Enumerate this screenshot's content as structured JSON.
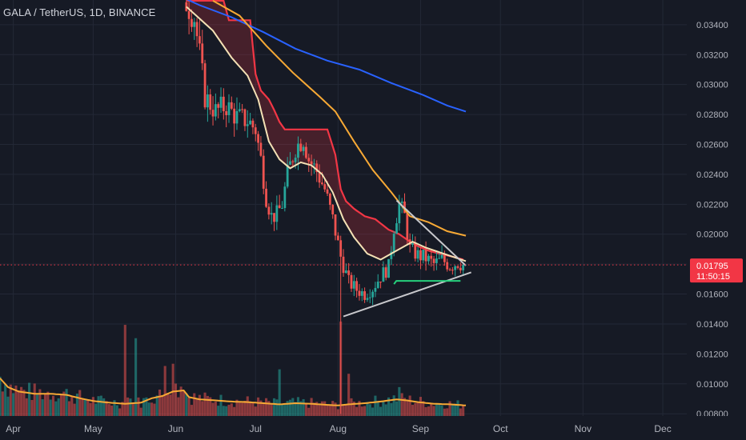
{
  "header": {
    "symbol_label": "GALA / TetherUS, 1D, BINANCE"
  },
  "price_badge": {
    "price": "0.01795",
    "countdown": "11:50:15",
    "color": "#f23645"
  },
  "colors": {
    "background": "#161a25",
    "grid": "#232836",
    "up": "#26a69a",
    "down": "#ef5350",
    "ma_fast": "#f4e1b5",
    "ma_mid": "#f7a935",
    "ma_slow": "#2962ff",
    "band": "#f23645",
    "volume_ma": "#f7a935",
    "trendline": "#c8c8cc",
    "support": "#26d07c"
  },
  "chart_data": {
    "type": "candlestick",
    "y_ticks": [
      "0.03400",
      "0.03200",
      "0.03000",
      "0.02800",
      "0.02600",
      "0.02400",
      "0.02200",
      "0.02000",
      "0.01800",
      "0.01600",
      "0.01400",
      "0.01200",
      "0.01000",
      "0.00800"
    ],
    "y_tick_values": [
      0.034,
      0.032,
      0.03,
      0.028,
      0.026,
      0.024,
      0.022,
      0.02,
      0.018,
      0.016,
      0.014,
      0.012,
      0.01,
      0.008
    ],
    "ylim": [
      0.00785,
      0.03565
    ],
    "x_range_days": [
      -5,
      253
    ],
    "months": [
      {
        "label": "Apr",
        "day": 0
      },
      {
        "label": "May",
        "day": 30
      },
      {
        "label": "Jun",
        "day": 61
      },
      {
        "label": "Jul",
        "day": 91
      },
      {
        "label": "Aug",
        "day": 122
      },
      {
        "label": "Sep",
        "day": 153
      },
      {
        "label": "Oct",
        "day": 183
      },
      {
        "label": "Nov",
        "day": 214
      },
      {
        "label": "Dec",
        "day": 244
      }
    ],
    "current_price": 0.01795,
    "candles_first_day": 65,
    "candles_last_day": 169,
    "price_path": [
      [
        65,
        0.0355
      ],
      [
        68,
        0.0345
      ],
      [
        70,
        0.032
      ],
      [
        72,
        0.0292
      ],
      [
        76,
        0.0282
      ],
      [
        80,
        0.0286
      ],
      [
        84,
        0.0278
      ],
      [
        88,
        0.0276
      ],
      [
        91,
        0.027
      ],
      [
        93,
        0.025
      ],
      [
        95,
        0.0225
      ],
      [
        97,
        0.0212
      ],
      [
        99,
        0.0213
      ],
      [
        101,
        0.022
      ],
      [
        103,
        0.024
      ],
      [
        106,
        0.0258
      ],
      [
        109,
        0.0264
      ],
      [
        111,
        0.025
      ],
      [
        114,
        0.0242
      ],
      [
        117,
        0.023
      ],
      [
        120,
        0.021
      ],
      [
        123,
        0.0185
      ],
      [
        126,
        0.0168
      ],
      [
        129,
        0.0163
      ],
      [
        132,
        0.016
      ],
      [
        135,
        0.0164
      ],
      [
        138,
        0.0172
      ],
      [
        141,
        0.0178
      ],
      [
        143,
        0.0205
      ],
      [
        145,
        0.022
      ],
      [
        147,
        0.0212
      ],
      [
        149,
        0.019
      ],
      [
        152,
        0.0186
      ],
      [
        155,
        0.0184
      ],
      [
        158,
        0.018
      ],
      [
        161,
        0.0183
      ],
      [
        164,
        0.0179
      ],
      [
        167,
        0.0181
      ],
      [
        169,
        0.01795
      ]
    ],
    "series": [
      {
        "name": "",
        "kind": "line",
        "color_key": "ma_slow",
        "points": [
          [
            59,
            0.0362
          ],
          [
            70,
            0.0353
          ],
          [
            82,
            0.0345
          ],
          [
            94,
            0.0335
          ],
          [
            106,
            0.0324
          ],
          [
            118,
            0.0316
          ],
          [
            130,
            0.031
          ],
          [
            142,
            0.0301
          ],
          [
            154,
            0.0293
          ],
          [
            163,
            0.0286
          ],
          [
            170,
            0.0282
          ]
        ]
      },
      {
        "name": "",
        "kind": "line",
        "color_key": "ma_mid",
        "points": [
          [
            75,
            0.0356
          ],
          [
            85,
            0.0346
          ],
          [
            95,
            0.0326
          ],
          [
            105,
            0.0308
          ],
          [
            115,
            0.0292
          ],
          [
            121,
            0.0282
          ],
          [
            128,
            0.0262
          ],
          [
            135,
            0.0243
          ],
          [
            142,
            0.0228
          ],
          [
            149,
            0.0212
          ],
          [
            156,
            0.0208
          ],
          [
            163,
            0.0202
          ],
          [
            170,
            0.0199
          ]
        ]
      },
      {
        "name": "",
        "kind": "line",
        "color_key": "ma_fast",
        "points": [
          [
            65,
            0.0352
          ],
          [
            75,
            0.0336
          ],
          [
            82,
            0.0318
          ],
          [
            88,
            0.0306
          ],
          [
            92,
            0.029
          ],
          [
            96,
            0.0262
          ],
          [
            100,
            0.025
          ],
          [
            104,
            0.0244
          ],
          [
            108,
            0.0248
          ],
          [
            112,
            0.0246
          ],
          [
            116,
            0.024
          ],
          [
            120,
            0.0228
          ],
          [
            124,
            0.021
          ],
          [
            128,
            0.0198
          ],
          [
            133,
            0.0187
          ],
          [
            138,
            0.0183
          ],
          [
            144,
            0.0189
          ],
          [
            150,
            0.0195
          ],
          [
            155,
            0.0191
          ],
          [
            160,
            0.0188
          ],
          [
            165,
            0.0185
          ],
          [
            170,
            0.0182
          ]
        ]
      },
      {
        "name": "",
        "kind": "band_top",
        "color_key": "band",
        "points": [
          [
            65,
            0.0356
          ],
          [
            79,
            0.0356
          ],
          [
            81,
            0.0343
          ],
          [
            89,
            0.0343
          ],
          [
            91,
            0.0307
          ],
          [
            93,
            0.0296
          ],
          [
            96,
            0.029
          ],
          [
            98,
            0.0283
          ],
          [
            100,
            0.0275
          ],
          [
            102,
            0.027
          ],
          [
            118,
            0.027
          ],
          [
            121,
            0.0253
          ],
          [
            123,
            0.023
          ],
          [
            125,
            0.0222
          ],
          [
            128,
            0.0217
          ],
          [
            132,
            0.0212
          ],
          [
            136,
            0.021
          ],
          [
            141,
            0.0203
          ],
          [
            145,
            0.02
          ],
          [
            149,
            0.0195
          ],
          [
            152,
            0.0192
          ],
          [
            156,
            0.0189
          ],
          [
            160,
            0.0187
          ],
          [
            165,
            0.0185
          ],
          [
            169,
            0.0183
          ]
        ]
      },
      {
        "name": "",
        "kind": "volume_ma",
        "color_key": "volume_ma",
        "points": [
          [
            -5,
            3400
          ],
          [
            -2,
            2600
          ],
          [
            2,
            2200
          ],
          [
            8,
            2000
          ],
          [
            14,
            2000
          ],
          [
            20,
            1900
          ],
          [
            25,
            1600
          ],
          [
            30,
            1350
          ],
          [
            36,
            1200
          ],
          [
            42,
            1100
          ],
          [
            48,
            1200
          ],
          [
            52,
            1600
          ],
          [
            56,
            1800
          ],
          [
            60,
            2200
          ],
          [
            64,
            2300
          ],
          [
            66,
            1700
          ],
          [
            70,
            1500
          ],
          [
            76,
            1400
          ],
          [
            82,
            1300
          ],
          [
            88,
            1250
          ],
          [
            94,
            1150
          ],
          [
            100,
            1050
          ],
          [
            106,
            1150
          ],
          [
            112,
            1100
          ],
          [
            118,
            1000
          ],
          [
            122,
            950
          ],
          [
            126,
            1050
          ],
          [
            132,
            1150
          ],
          [
            138,
            1300
          ],
          [
            144,
            1500
          ],
          [
            148,
            1400
          ],
          [
            152,
            1250
          ],
          [
            158,
            1100
          ],
          [
            164,
            1050
          ],
          [
            170,
            950
          ]
        ]
      }
    ],
    "volume": {
      "first_day": -5,
      "last_day": 169,
      "ymax": 9500,
      "spikes": [
        [
          42,
          8200
        ],
        [
          46,
          7000
        ],
        [
          57,
          4500
        ],
        [
          60,
          4700
        ],
        [
          100,
          4200
        ],
        [
          123,
          8500
        ],
        [
          126,
          3800
        ],
        [
          145,
          2600
        ]
      ]
    },
    "trendlines": [
      {
        "color_key": "trendline",
        "from": [
          124,
          0.0145
        ],
        "to": [
          172,
          0.01745
        ]
      },
      {
        "color_key": "trendline",
        "from": [
          144,
          0.02225
        ],
        "to": [
          170,
          0.0179
        ]
      }
    ],
    "support_zone": {
      "color_key": "support",
      "from_day": 143,
      "to_day": 168,
      "level": 0.01688
    }
  }
}
